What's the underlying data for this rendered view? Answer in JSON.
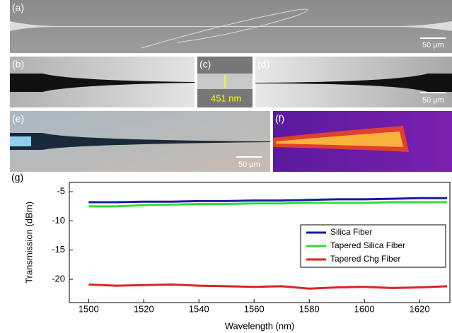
{
  "figure_panels": {
    "labels": [
      "(a)",
      "(b)",
      "(c)",
      "(d)",
      "(e)",
      "(f)",
      "(g)"
    ],
    "scale_bars": [
      "50 μm",
      "50 μm",
      "50 μm"
    ],
    "thickness_label": "451 nm"
  },
  "chart_data": {
    "type": "line",
    "x_label": "Wavelength (nm)",
    "y_label": "Transmission (dBm)",
    "x": [
      1500,
      1510,
      1520,
      1530,
      1540,
      1550,
      1560,
      1570,
      1580,
      1590,
      1600,
      1610,
      1620,
      1630
    ],
    "series": [
      {
        "name": "Silica Fiber",
        "color": "#1a1aa8",
        "values": [
          -6.8,
          -6.8,
          -6.7,
          -6.7,
          -6.6,
          -6.6,
          -6.5,
          -6.5,
          -6.4,
          -6.3,
          -6.3,
          -6.2,
          -6.1,
          -6.1
        ]
      },
      {
        "name": "Tapered Silica Fiber",
        "color": "#33dd33",
        "values": [
          -7.5,
          -7.5,
          -7.3,
          -7.2,
          -7.1,
          -7.1,
          -7.0,
          -7.0,
          -6.9,
          -6.9,
          -6.9,
          -6.8,
          -6.8,
          -6.8
        ]
      },
      {
        "name": "Tapered Chg Fiber",
        "color": "#dd2222",
        "values": [
          -20.9,
          -21.1,
          -21.0,
          -20.9,
          -21.1,
          -21.2,
          -21.3,
          -21.2,
          -21.6,
          -21.4,
          -21.3,
          -21.5,
          -21.4,
          -21.2
        ]
      }
    ],
    "xlim": [
      1493,
      1631
    ],
    "ylim": [
      -24,
      -3.4
    ],
    "xticks": [
      1500,
      1520,
      1540,
      1560,
      1580,
      1600,
      1620
    ],
    "yticks": [
      -5,
      -10,
      -15,
      -20
    ],
    "legend": "right",
    "grid": false
  }
}
